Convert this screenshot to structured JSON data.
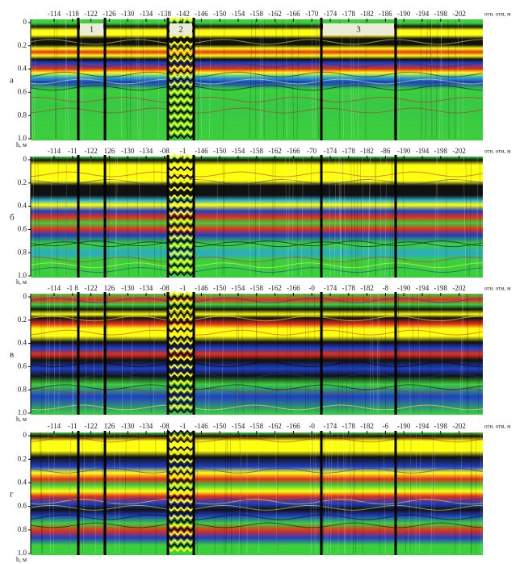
{
  "panels": [
    {
      "label": "а",
      "x_ticks": [
        "-114",
        "-118",
        "-122",
        "-126",
        "-130",
        "-134",
        "-138",
        "-142",
        "-146",
        "-150",
        "-154",
        "-158",
        "-162",
        "-166",
        "-170",
        "-174",
        "-178",
        "-182",
        "-186",
        "-190",
        "-194",
        "-198",
        "-202"
      ],
      "x_unit": "отн. отм, м",
      "y_ticks": [
        "0",
        "0.2",
        "0.4",
        "0.6",
        "0.8",
        "1.0"
      ],
      "y_unit": "h, м"
    },
    {
      "label": "б",
      "x_ticks": [
        "-114",
        "-11",
        "-122",
        "126",
        "-130",
        "-134",
        "-08",
        "-1",
        "-146",
        "-150",
        "-154",
        "-158",
        "-162",
        "-166",
        "-70",
        "-174",
        "-178",
        "-182",
        "-86",
        "-190",
        "-194",
        "-198",
        "-202"
      ],
      "x_unit": "отн. отм, м",
      "y_ticks": [
        "0",
        "0.2",
        "0.4",
        "0.6",
        "0.8",
        "1.0"
      ],
      "y_unit": "h, м"
    },
    {
      "label": "в",
      "x_ticks": [
        "-114",
        "-1 8",
        "-122",
        "126",
        "-130",
        "-134",
        "-08",
        "-1",
        "-146",
        "-150",
        "-154",
        "-158",
        "-162",
        "-166",
        "-0",
        "-174",
        "-178",
        "-182",
        "-8",
        "-190",
        "-194",
        "-198",
        "-202"
      ],
      "x_unit": "отн. отм, м",
      "y_ticks": [
        "0",
        "0.2",
        "0.4",
        "0.6",
        "0.8",
        "1.0"
      ],
      "y_unit": "h, м"
    },
    {
      "label": "г",
      "x_ticks": [
        "-114",
        "-11",
        "-122",
        "126",
        "-130",
        "-134",
        "-08",
        "-1",
        "-146",
        "-150",
        "-154",
        "-158",
        "-162",
        "-166",
        "-0",
        "-174",
        "-178",
        "-182",
        "-6",
        "-190",
        "-194",
        "-198",
        "-202"
      ],
      "x_unit": "отн. отм, м",
      "y_ticks": [
        "0",
        "0.2",
        "0.4",
        "0.6",
        "0.8",
        "1.0"
      ],
      "y_unit": "h, м"
    }
  ],
  "sections": [
    "1",
    "2",
    "3"
  ]
}
